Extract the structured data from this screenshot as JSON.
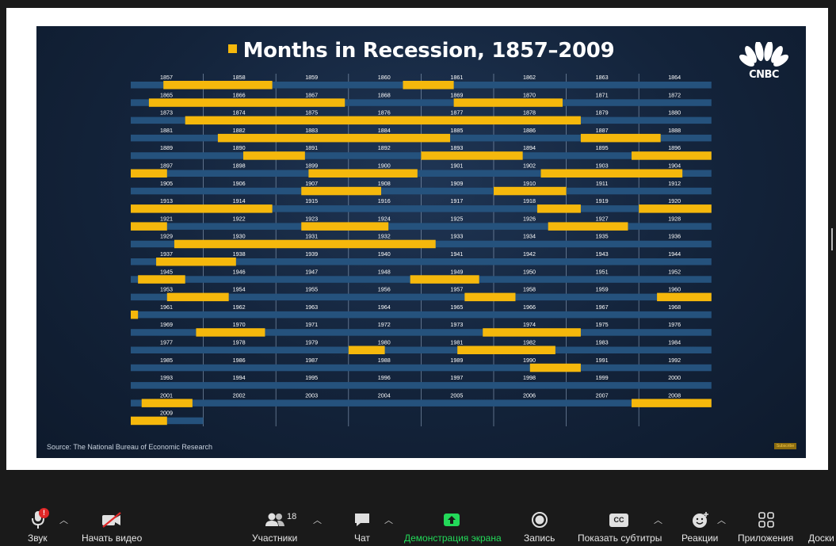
{
  "slide": {
    "title": "Months in Recession, 1857–2009",
    "source": "Source: The National Bureau of Economic Research",
    "logo": "CNBC",
    "subscribe": "Subscribe",
    "colors": {
      "recession": "#f5b80c",
      "track": "#25527d",
      "background": "#13233a"
    }
  },
  "chart_data": {
    "type": "timeline",
    "title": "Months in Recession, 1857–2009",
    "unit": "years (each row = 8 years)",
    "rows": [
      {
        "years": [
          "1857",
          "1858",
          "1859",
          "1860",
          "1861",
          "1862",
          "1863",
          "1864"
        ]
      },
      {
        "years": [
          "1865",
          "1866",
          "1867",
          "1868",
          "1869",
          "1870",
          "1871",
          "1872"
        ]
      },
      {
        "years": [
          "1873",
          "1874",
          "1875",
          "1876",
          "1877",
          "1878",
          "1879",
          "1880"
        ]
      },
      {
        "years": [
          "1881",
          "1882",
          "1883",
          "1884",
          "1885",
          "1886",
          "1887",
          "1888"
        ]
      },
      {
        "years": [
          "1889",
          "1890",
          "1891",
          "1892",
          "1893",
          "1894",
          "1895",
          "1896"
        ]
      },
      {
        "years": [
          "1897",
          "1898",
          "1899",
          "1900",
          "1901",
          "1902",
          "1903",
          "1904"
        ]
      },
      {
        "years": [
          "1905",
          "1906",
          "1907",
          "1908",
          "1909",
          "1910",
          "1911",
          "1912"
        ]
      },
      {
        "years": [
          "1913",
          "1914",
          "1915",
          "1916",
          "1917",
          "1918",
          "1919",
          "1920"
        ]
      },
      {
        "years": [
          "1921",
          "1922",
          "1923",
          "1924",
          "1925",
          "1926",
          "1927",
          "1928"
        ]
      },
      {
        "years": [
          "1929",
          "1930",
          "1931",
          "1932",
          "1933",
          "1934",
          "1935",
          "1936"
        ]
      },
      {
        "years": [
          "1937",
          "1938",
          "1939",
          "1940",
          "1941",
          "1942",
          "1943",
          "1944"
        ]
      },
      {
        "years": [
          "1945",
          "1946",
          "1947",
          "1948",
          "1949",
          "1950",
          "1951",
          "1952"
        ]
      },
      {
        "years": [
          "1953",
          "1954",
          "1955",
          "1956",
          "1957",
          "1958",
          "1959",
          "1960"
        ]
      },
      {
        "years": [
          "1961",
          "1962",
          "1963",
          "1964",
          "1965",
          "1966",
          "1967",
          "1968"
        ]
      },
      {
        "years": [
          "1969",
          "1970",
          "1971",
          "1972",
          "1973",
          "1974",
          "1975",
          "1976"
        ]
      },
      {
        "years": [
          "1977",
          "1978",
          "1979",
          "1980",
          "1981",
          "1982",
          "1983",
          "1984"
        ]
      },
      {
        "years": [
          "1985",
          "1986",
          "1987",
          "1988",
          "1989",
          "1990",
          "1991",
          "1992"
        ]
      },
      {
        "years": [
          "1993",
          "1994",
          "1995",
          "1996",
          "1997",
          "1998",
          "1999",
          "2000"
        ]
      },
      {
        "years": [
          "2001",
          "2002",
          "2003",
          "2004",
          "2005",
          "2006",
          "2007",
          "2008"
        ]
      },
      {
        "years": [
          "2009"
        ]
      }
    ],
    "recessions": [
      {
        "start": 1857.45,
        "end": 1858.95
      },
      {
        "start": 1860.75,
        "end": 1861.45
      },
      {
        "start": 1865.25,
        "end": 1867.95
      },
      {
        "start": 1869.45,
        "end": 1870.95
      },
      {
        "start": 1873.75,
        "end": 1879.2
      },
      {
        "start": 1882.2,
        "end": 1885.4
      },
      {
        "start": 1887.2,
        "end": 1888.3
      },
      {
        "start": 1890.55,
        "end": 1891.4
      },
      {
        "start": 1893.0,
        "end": 1894.4
      },
      {
        "start": 1895.9,
        "end": 1897.5
      },
      {
        "start": 1899.45,
        "end": 1900.95
      },
      {
        "start": 1902.65,
        "end": 1904.6
      },
      {
        "start": 1907.35,
        "end": 1908.45
      },
      {
        "start": 1910.0,
        "end": 1911.0
      },
      {
        "start": 1913.0,
        "end": 1914.95
      },
      {
        "start": 1918.6,
        "end": 1919.2
      },
      {
        "start": 1920.0,
        "end": 1921.5
      },
      {
        "start": 1923.35,
        "end": 1924.55
      },
      {
        "start": 1926.75,
        "end": 1927.85
      },
      {
        "start": 1929.6,
        "end": 1933.2
      },
      {
        "start": 1937.35,
        "end": 1938.45
      },
      {
        "start": 1945.1,
        "end": 1945.75
      },
      {
        "start": 1948.85,
        "end": 1949.8
      },
      {
        "start": 1953.5,
        "end": 1954.35
      },
      {
        "start": 1957.6,
        "end": 1958.3
      },
      {
        "start": 1960.25,
        "end": 1961.1
      },
      {
        "start": 1969.9,
        "end": 1970.85
      },
      {
        "start": 1973.85,
        "end": 1975.2
      },
      {
        "start": 1980.0,
        "end": 1980.5
      },
      {
        "start": 1981.5,
        "end": 1982.85
      },
      {
        "start": 1990.5,
        "end": 1991.2
      },
      {
        "start": 2001.15,
        "end": 2001.85
      },
      {
        "start": 2007.9,
        "end": 2009.5
      }
    ]
  },
  "toolbar": {
    "audio_label": "Звук",
    "audio_badge": "!",
    "video_label": "Начать видео",
    "participants_label": "Участники",
    "participants_count": "18",
    "chat_label": "Чат",
    "share_label": "Демонстрация экрана",
    "record_label": "Запись",
    "captions_label": "Показать субтитры",
    "captions_badge": "CC",
    "reactions_label": "Реакции",
    "apps_label": "Приложения",
    "whiteboard_label": "Доски",
    "share_color": "#23d959"
  }
}
